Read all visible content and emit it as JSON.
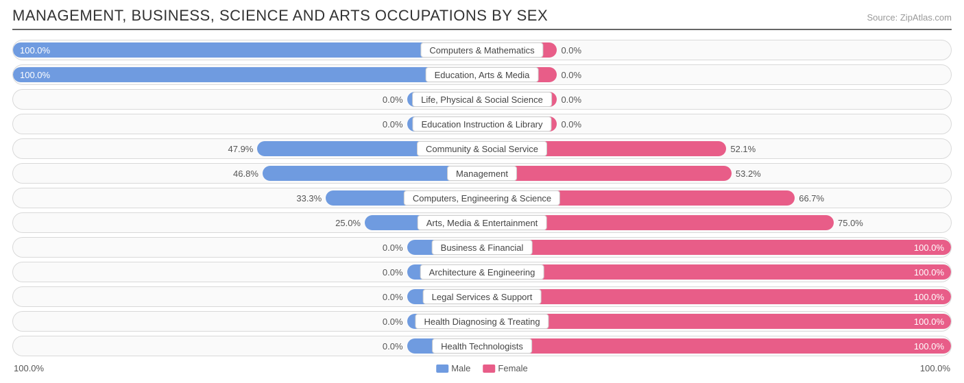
{
  "header": {
    "title": "MANAGEMENT, BUSINESS, SCIENCE AND ARTS OCCUPATIONS BY SEX",
    "source_prefix": "Source: ",
    "source_name": "ZipAtlas.com"
  },
  "chart": {
    "type": "diverging-bar",
    "male_color": "#6f9be0",
    "female_color": "#e85d88",
    "track_bg": "#fafafa",
    "track_border": "#d9d9d9",
    "label_box_bg": "#ffffff",
    "label_box_border": "#cccccc",
    "min_bar_pct": 8,
    "axis_left": "100.0%",
    "axis_right": "100.0%",
    "legend": [
      {
        "label": "Male",
        "color": "#6f9be0"
      },
      {
        "label": "Female",
        "color": "#e85d88"
      }
    ],
    "rows": [
      {
        "category": "Computers & Mathematics",
        "male": 100.0,
        "female": 0.0
      },
      {
        "category": "Education, Arts & Media",
        "male": 100.0,
        "female": 0.0
      },
      {
        "category": "Life, Physical & Social Science",
        "male": 0.0,
        "female": 0.0
      },
      {
        "category": "Education Instruction & Library",
        "male": 0.0,
        "female": 0.0
      },
      {
        "category": "Community & Social Service",
        "male": 47.9,
        "female": 52.1
      },
      {
        "category": "Management",
        "male": 46.8,
        "female": 53.2
      },
      {
        "category": "Computers, Engineering & Science",
        "male": 33.3,
        "female": 66.7
      },
      {
        "category": "Arts, Media & Entertainment",
        "male": 25.0,
        "female": 75.0
      },
      {
        "category": "Business & Financial",
        "male": 0.0,
        "female": 100.0
      },
      {
        "category": "Architecture & Engineering",
        "male": 0.0,
        "female": 100.0
      },
      {
        "category": "Legal Services & Support",
        "male": 0.0,
        "female": 100.0
      },
      {
        "category": "Health Diagnosing & Treating",
        "male": 0.0,
        "female": 100.0
      },
      {
        "category": "Health Technologists",
        "male": 0.0,
        "female": 100.0
      }
    ]
  }
}
